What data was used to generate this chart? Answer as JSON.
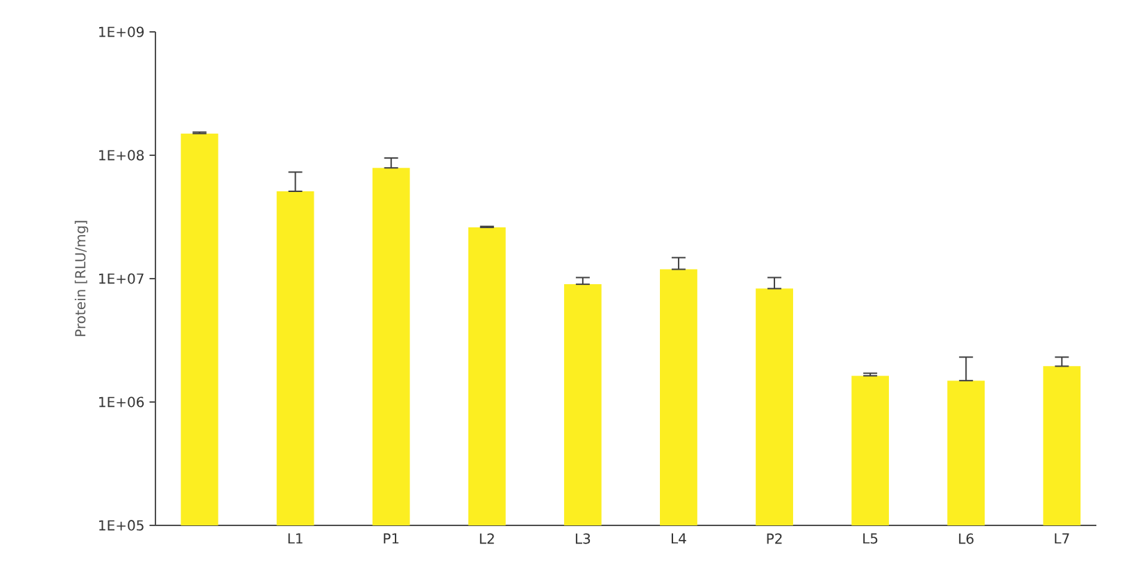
{
  "chart_data": {
    "type": "bar",
    "categories": [
      null,
      "L1",
      "P1",
      "L2",
      "L3",
      "L4",
      "P2",
      "L5",
      "L6",
      "L7"
    ],
    "values": [
      150000000,
      51000000,
      79000000,
      26000000,
      9000000,
      11900000,
      8300000,
      1630000,
      1490000,
      1950000
    ],
    "errors": [
      [
        150000000,
        154000000
      ],
      [
        51000000,
        73000000
      ],
      [
        79000000,
        95000000
      ],
      [
        26000000,
        26500000
      ],
      [
        9000000,
        10200000
      ],
      [
        11900000,
        14800000
      ],
      [
        8300000,
        10200000
      ],
      [
        1630000,
        1710000
      ],
      [
        1490000,
        2310000
      ],
      [
        1950000,
        2310000
      ]
    ],
    "color": "#fcee21",
    "ylabel": "Protein [RLU/mg]",
    "log": true,
    "ylim": [
      100000,
      1000000000
    ],
    "yticks": [
      {
        "value": 100000,
        "label": "1E+05"
      },
      {
        "value": 1000000,
        "label": "1E+06"
      },
      {
        "value": 10000000,
        "label": "1E+07"
      },
      {
        "value": 100000000,
        "label": "1E+08"
      },
      {
        "value": 1000000000,
        "label": "1E+09"
      }
    ]
  }
}
